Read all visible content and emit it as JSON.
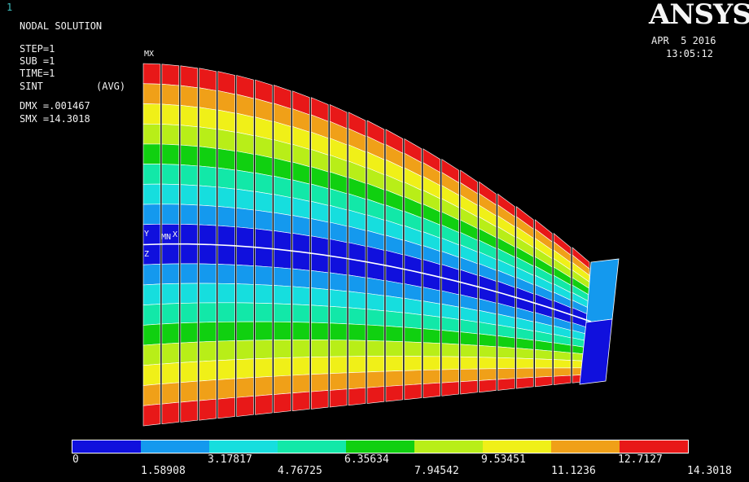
{
  "window_number": "1",
  "title": "NODAL SOLUTION",
  "step": "STEP=1",
  "sub": "SUB =1",
  "time": "TIME=1",
  "sint": "SINT",
  "avg": "(AVG)",
  "dmx": "DMX =.001467",
  "smx": "SMX =14.3018",
  "logo": "ANSYS",
  "date": "APR  5 2016",
  "clock": "13:05:12",
  "marker_mx": "MX",
  "marker_y": "Y",
  "marker_mn": "MN",
  "marker_x": "X",
  "marker_z": "Z",
  "legend": {
    "colors": [
      "#1010dd",
      "#1499ee",
      "#16dede",
      "#12e8a8",
      "#10d010",
      "#b8ee18",
      "#f0f018",
      "#f0a018",
      "#e81818"
    ],
    "labels_top": [
      "0",
      "3.17817",
      "6.35634",
      "9.53451",
      "12.7127"
    ],
    "labels_bottom": [
      "1.58908",
      "4.76725",
      "7.94542",
      "11.1236",
      "14.3018"
    ]
  }
}
